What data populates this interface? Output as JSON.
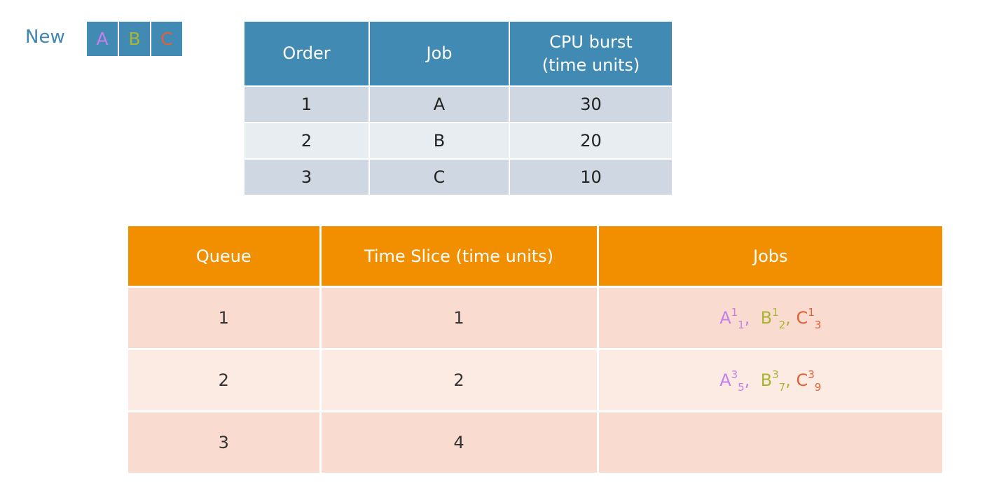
{
  "new_label": "New",
  "new_queue": [
    "A",
    "B",
    "C"
  ],
  "job_table": {
    "headers": [
      "Order",
      "Job",
      "CPU burst\n(time units)"
    ],
    "rows": [
      {
        "order": "1",
        "job": "A",
        "burst": "30"
      },
      {
        "order": "2",
        "job": "B",
        "burst": "20"
      },
      {
        "order": "3",
        "job": "C",
        "burst": "10"
      }
    ]
  },
  "queue_table": {
    "headers": [
      "Queue",
      "Time Slice (time units)",
      "Jobs"
    ],
    "rows": [
      {
        "queue": "1",
        "slice": "1",
        "jobs": [
          {
            "name": "A",
            "sup": "1",
            "sub": "1",
            "sep": ",  "
          },
          {
            "name": "B",
            "sup": "1",
            "sub": "2",
            "sep": ", "
          },
          {
            "name": "C",
            "sup": "1",
            "sub": "3",
            "sep": ""
          }
        ]
      },
      {
        "queue": "2",
        "slice": "2",
        "jobs": [
          {
            "name": "A",
            "sup": "3",
            "sub": "5",
            "sep": ",  "
          },
          {
            "name": "B",
            "sup": "3",
            "sub": "7",
            "sep": ", "
          },
          {
            "name": "C",
            "sup": "3",
            "sub": "9",
            "sep": ""
          }
        ]
      },
      {
        "queue": "3",
        "slice": "4",
        "jobs": []
      }
    ]
  },
  "colors": {
    "job_a": "#c57fe8",
    "job_b": "#a9b531",
    "job_c": "#e35f37",
    "blue_header": "#418ab3",
    "orange_header": "#f28f00"
  }
}
